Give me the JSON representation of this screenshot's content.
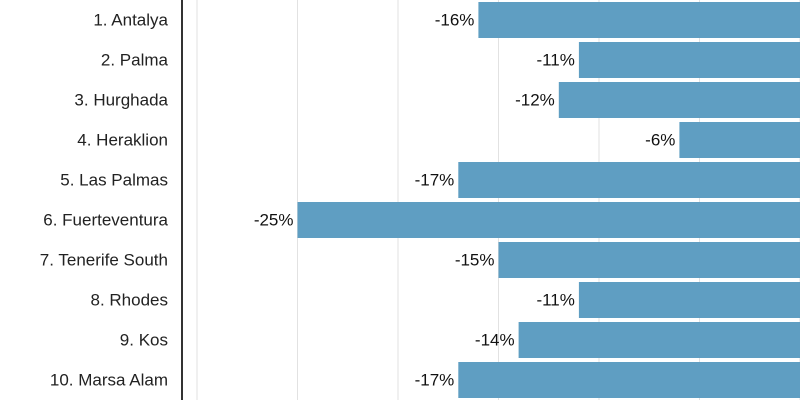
{
  "chart_data": {
    "type": "bar",
    "orientation": "horizontal",
    "categories": [
      "1. Antalya",
      "2. Palma",
      "3. Hurghada",
      "4. Heraklion",
      "5. Las Palmas",
      "6. Fuerteventura",
      "7. Tenerife South",
      "8. Rhodes",
      "9. Kos",
      "10. Marsa Alam"
    ],
    "values": [
      -16,
      -11,
      -12,
      -6,
      -17,
      -25,
      -15,
      -11,
      -14,
      -17
    ],
    "value_labels": [
      "-16%",
      "-11%",
      "-12%",
      "-6%",
      "-17%",
      "-25%",
      "-15%",
      "-11%",
      "-14%",
      "-17%"
    ],
    "xlim": [
      -30,
      0
    ],
    "grid": true,
    "bar_color": "#5f9ec2",
    "grid_color": "#e2e2e2",
    "axis_color": "#333333",
    "title": "",
    "xlabel": "",
    "ylabel": ""
  }
}
